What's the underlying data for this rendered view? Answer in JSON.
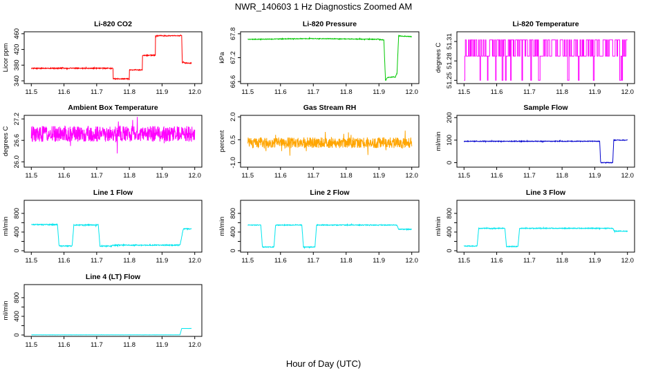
{
  "figure": {
    "title": "NWR_140603  1 Hz Diagnostics Zoomed AM",
    "xlabel": "Hour of Day (UTC)"
  },
  "chart_data": [
    {
      "id": "co2",
      "type": "line",
      "title": "Li-820 CO2",
      "ylabel": "Licor ppm",
      "xlim": [
        11.5,
        12.0
      ],
      "ylim": [
        333,
        465
      ],
      "xticks": [
        11.5,
        11.6,
        11.7,
        11.8,
        11.9,
        12.0
      ],
      "xtick_labels": [
        "11.5",
        "11.6",
        "11.7",
        "11.8",
        "11.9",
        "12.0"
      ],
      "yticks": [
        340,
        380,
        420,
        460
      ],
      "ytick_labels": [
        "340",
        "380",
        "420",
        "460"
      ],
      "color": "#ff0000",
      "noise": 1.2,
      "seed": 1,
      "x": [
        11.5,
        11.75,
        11.75,
        11.8,
        11.8,
        11.84,
        11.84,
        11.88,
        11.88,
        11.96,
        11.962,
        11.965,
        11.97,
        11.99
      ],
      "y": [
        372,
        372,
        345,
        345,
        368,
        368,
        405,
        405,
        455,
        455,
        385,
        388,
        385,
        385
      ]
    },
    {
      "id": "pressure",
      "type": "line",
      "title": "Li-820 Pressure",
      "ylabel": "kPa",
      "xlim": [
        11.5,
        12.0
      ],
      "ylim": [
        66.55,
        67.85
      ],
      "xticks": [
        11.5,
        11.6,
        11.7,
        11.8,
        11.9,
        12.0
      ],
      "xtick_labels": [
        "11.5",
        "11.6",
        "11.7",
        "11.8",
        "11.9",
        "12.0"
      ],
      "yticks": [
        66.6,
        67.2,
        67.8
      ],
      "ytick_labels": [
        "66.6",
        "67.2",
        "67.8"
      ],
      "color": "#00c800",
      "noise": 0.008,
      "seed": 2,
      "x": [
        11.5,
        11.6,
        11.7,
        11.8,
        11.9,
        11.915,
        11.92,
        11.925,
        11.95,
        11.955,
        11.96,
        11.97,
        12.0
      ],
      "y": [
        67.66,
        67.67,
        67.68,
        67.67,
        67.66,
        67.64,
        66.62,
        66.7,
        66.72,
        66.8,
        67.75,
        67.74,
        67.73
      ]
    },
    {
      "id": "temp",
      "type": "line",
      "title": "Li-820 Temperature",
      "ylabel": "degrees C",
      "xlim": [
        11.5,
        12.0
      ],
      "ylim": [
        51.245,
        51.325
      ],
      "xticks": [
        11.5,
        11.6,
        11.7,
        11.8,
        11.9,
        12.0
      ],
      "xtick_labels": [
        "11.5",
        "11.6",
        "11.7",
        "11.8",
        "11.9",
        "12.0"
      ],
      "yticks": [
        51.25,
        51.28,
        51.31
      ],
      "ytick_labels": [
        "51.25",
        "51.28",
        "51.31"
      ],
      "color": "#ff00ff",
      "noise": 0,
      "seed": 3,
      "levels": [
        51.3125,
        51.2875,
        51.25
      ],
      "x": [
        11.5,
        12.0
      ],
      "y": [
        51.3125,
        51.2875
      ]
    },
    {
      "id": "ambient",
      "type": "line",
      "title": "Ambient Box Temperature",
      "ylabel": "degrees C",
      "xlim": [
        11.5,
        12.0
      ],
      "ylim": [
        25.85,
        27.3
      ],
      "xticks": [
        11.5,
        11.6,
        11.7,
        11.8,
        11.9,
        12.0
      ],
      "xtick_labels": [
        "11.5",
        "11.6",
        "11.7",
        "11.8",
        "11.9",
        "12.0"
      ],
      "yticks": [
        26.0,
        26.6,
        27.2
      ],
      "ytick_labels": [
        "26.0",
        "26.6",
        "27.2"
      ],
      "color": "#ff00ff",
      "noise": 0.22,
      "seed": 4,
      "x": [
        11.5,
        12.0
      ],
      "y": [
        26.78,
        26.78
      ]
    },
    {
      "id": "rh",
      "type": "line",
      "title": "Gas Stream RH",
      "ylabel": "percent",
      "xlim": [
        11.5,
        12.0
      ],
      "ylim": [
        -1.3,
        2.1
      ],
      "xticks": [
        11.5,
        11.6,
        11.7,
        11.8,
        11.9,
        12.0
      ],
      "xtick_labels": [
        "11.5",
        "11.6",
        "11.7",
        "11.8",
        "11.9",
        "12.0"
      ],
      "yticks": [
        -1.0,
        0.5,
        2.0
      ],
      "ytick_labels": [
        "-1.0",
        "0.5",
        "2.0"
      ],
      "color": "#ffa500",
      "noise": 0.35,
      "seed": 5,
      "x": [
        11.5,
        12.0
      ],
      "y": [
        0.3,
        0.3
      ]
    },
    {
      "id": "sample",
      "type": "line",
      "title": "Sample Flow",
      "ylabel": "ml/min",
      "xlim": [
        11.5,
        12.0
      ],
      "ylim": [
        -20,
        210
      ],
      "xticks": [
        11.5,
        11.6,
        11.7,
        11.8,
        11.9,
        12.0
      ],
      "xtick_labels": [
        "11.5",
        "11.6",
        "11.7",
        "11.8",
        "11.9",
        "12.0"
      ],
      "yticks": [
        0,
        100,
        200
      ],
      "ytick_labels": [
        "0",
        "100",
        "200"
      ],
      "color": "#0000cd",
      "noise": 1.5,
      "seed": 6,
      "x": [
        11.5,
        11.915,
        11.918,
        11.955,
        11.958,
        12.0
      ],
      "y": [
        95,
        95,
        0,
        0,
        100,
        100
      ]
    },
    {
      "id": "line1",
      "type": "line",
      "title": "Line 1 Flow",
      "ylabel": "ml/min",
      "xlim": [
        11.5,
        12.0
      ],
      "ylim": [
        -30,
        1080
      ],
      "xticks": [
        11.5,
        11.6,
        11.7,
        11.8,
        11.9,
        12.0
      ],
      "xtick_labels": [
        "11.5",
        "11.6",
        "11.7",
        "11.8",
        "11.9",
        "12.0"
      ],
      "yticks": [
        0,
        200,
        400,
        600,
        800
      ],
      "ytick_labels": [
        "0",
        "400",
        "800"
      ],
      "color": "#00e5ee",
      "noise": 10,
      "seed": 7,
      "x": [
        11.5,
        11.58,
        11.585,
        11.625,
        11.63,
        11.705,
        11.71,
        11.745,
        11.75,
        11.955,
        11.965,
        11.99
      ],
      "y": [
        560,
        560,
        100,
        100,
        550,
        550,
        100,
        100,
        120,
        120,
        470,
        470
      ]
    },
    {
      "id": "line2",
      "type": "line",
      "title": "Line 2 Flow",
      "ylabel": "ml/min",
      "xlim": [
        11.5,
        12.0
      ],
      "ylim": [
        -30,
        1080
      ],
      "xticks": [
        11.5,
        11.6,
        11.7,
        11.8,
        11.9,
        12.0
      ],
      "xtick_labels": [
        "11.5",
        "11.6",
        "11.7",
        "11.8",
        "11.9",
        "12.0"
      ],
      "yticks": [
        0,
        200,
        400,
        600,
        800
      ],
      "ytick_labels": [
        "0",
        "400",
        "800"
      ],
      "color": "#00e5ee",
      "noise": 8,
      "seed": 8,
      "x": [
        11.5,
        11.54,
        11.545,
        11.58,
        11.585,
        11.665,
        11.67,
        11.705,
        11.71,
        11.955,
        11.96,
        12.0
      ],
      "y": [
        550,
        550,
        80,
        80,
        550,
        550,
        80,
        80,
        550,
        550,
        460,
        460
      ]
    },
    {
      "id": "line3",
      "type": "line",
      "title": "Line 3 Flow",
      "ylabel": "ml/min",
      "xlim": [
        11.5,
        12.0
      ],
      "ylim": [
        -30,
        1080
      ],
      "xticks": [
        11.5,
        11.6,
        11.7,
        11.8,
        11.9,
        12.0
      ],
      "xtick_labels": [
        "11.5",
        "11.6",
        "11.7",
        "11.8",
        "11.9",
        "12.0"
      ],
      "yticks": [
        0,
        200,
        400,
        600,
        800
      ],
      "ytick_labels": [
        "0",
        "400",
        "800"
      ],
      "color": "#00e5ee",
      "noise": 8,
      "seed": 9,
      "x": [
        11.5,
        11.54,
        11.545,
        11.625,
        11.63,
        11.665,
        11.67,
        11.955,
        11.96,
        12.0
      ],
      "y": [
        100,
        100,
        480,
        480,
        90,
        90,
        480,
        480,
        420,
        420
      ]
    },
    {
      "id": "line4",
      "type": "line",
      "title": "Line 4 (LT) Flow",
      "ylabel": "ml/min",
      "xlim": [
        11.5,
        12.0
      ],
      "ylim": [
        -30,
        1080
      ],
      "xticks": [
        11.5,
        11.6,
        11.7,
        11.8,
        11.9,
        12.0
      ],
      "xtick_labels": [
        "11.5",
        "11.6",
        "11.7",
        "11.8",
        "11.9",
        "12.0"
      ],
      "yticks": [
        0,
        200,
        400,
        600,
        800
      ],
      "ytick_labels": [
        "0",
        "400",
        "800"
      ],
      "color": "#00e5ee",
      "noise": 1.5,
      "seed": 10,
      "x": [
        11.5,
        11.955,
        11.96,
        11.99
      ],
      "y": [
        3,
        3,
        140,
        140
      ]
    }
  ]
}
